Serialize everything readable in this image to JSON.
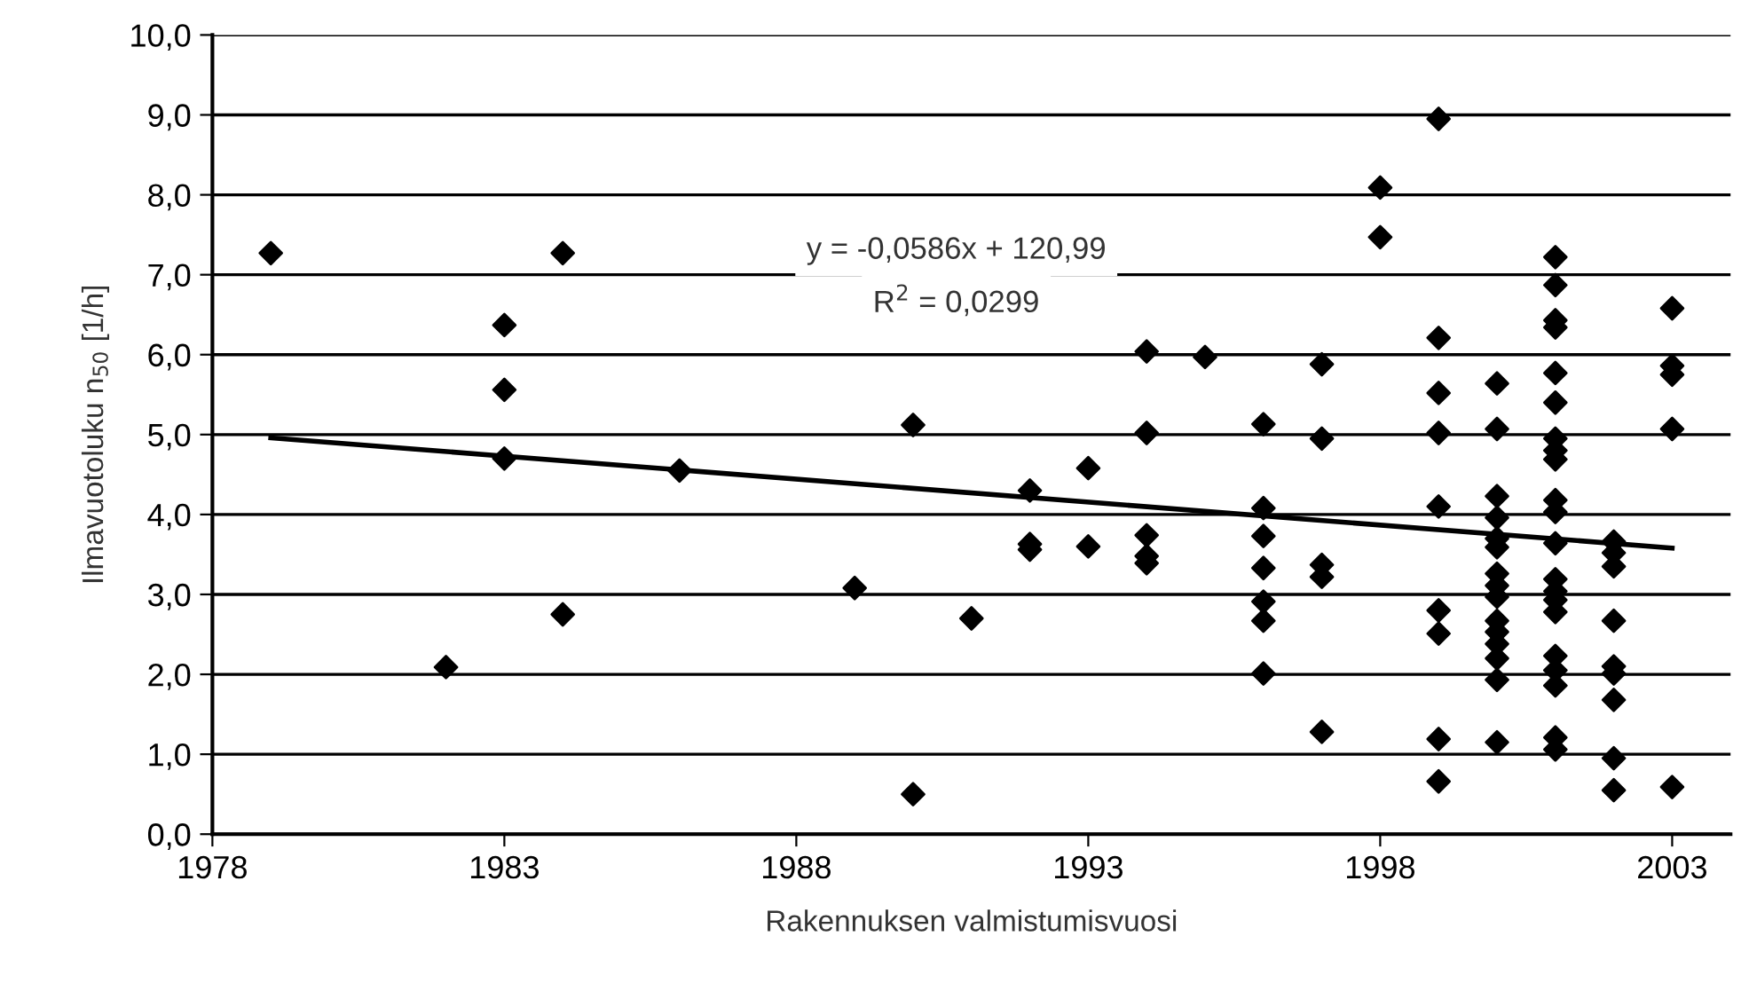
{
  "chart_data": {
    "type": "scatter",
    "xlabel": "Rakennuksen valmistumisvuosi",
    "ylabel": "Ilmavuotoluku n$_{50}$ [1/h]",
    "annotations": [
      "y = -0,0586x + 120,99",
      "R$^{2}$ = 0,0299"
    ],
    "xlim": [
      1978,
      2004
    ],
    "xticks": [
      1978,
      1983,
      1988,
      1993,
      1998,
      2003
    ],
    "ylim": [
      0,
      10
    ],
    "yticks": [
      {
        "value": 0,
        "label": "0,0"
      },
      {
        "value": 1,
        "label": "1,0"
      },
      {
        "value": 2,
        "label": "2,0"
      },
      {
        "value": 3,
        "label": "3,0"
      },
      {
        "value": 4,
        "label": "4,0"
      },
      {
        "value": 5,
        "label": "5,0"
      },
      {
        "value": 6,
        "label": "6,0"
      },
      {
        "value": 7,
        "label": "7,0"
      },
      {
        "value": 8,
        "label": "8,0"
      },
      {
        "value": 9,
        "label": "9,0"
      },
      {
        "value": 10,
        "label": "10,0"
      }
    ],
    "grid": "y",
    "legend": false,
    "marker": "diamond",
    "series": [
      {
        "color": "#000000",
        "x": [
          1979,
          1982,
          1983,
          1983,
          1983,
          1984,
          1984,
          1986,
          1989,
          1990,
          1990,
          1991,
          1992,
          1992,
          1992,
          1993,
          1993,
          1994,
          1994,
          1994,
          1994,
          1994,
          1995,
          1996,
          1996,
          1996,
          1996,
          1996,
          1996,
          1996,
          1997,
          1997,
          1997,
          1997,
          1997,
          1998,
          1998,
          1999,
          1999,
          1999,
          1999,
          1999,
          1999,
          1999,
          1999,
          1999,
          2000,
          2000,
          2000,
          2000,
          2000,
          2000,
          2000,
          2000,
          2000,
          2000,
          2000,
          2000,
          2000,
          2000,
          2000,
          2001,
          2001,
          2001,
          2001,
          2001,
          2001,
          2001,
          2001,
          2001,
          2001,
          2001,
          2001,
          2001,
          2001,
          2001,
          2001,
          2001,
          2001,
          2001,
          2001,
          2001,
          2002,
          2002,
          2002,
          2002,
          2002,
          2002,
          2002,
          2002,
          2002,
          2003,
          2003,
          2003,
          2003,
          2003
        ],
        "values": [
          7.27,
          2.09,
          6.37,
          5.56,
          4.7,
          7.27,
          2.75,
          4.55,
          3.08,
          5.12,
          0.5,
          2.7,
          4.3,
          3.63,
          3.56,
          4.58,
          3.6,
          6.04,
          5.02,
          3.74,
          3.48,
          3.39,
          5.97,
          5.13,
          4.08,
          3.73,
          3.33,
          2.91,
          2.67,
          2.01,
          5.88,
          4.95,
          3.37,
          3.22,
          1.28,
          8.09,
          7.47,
          8.95,
          6.21,
          5.52,
          5.02,
          4.1,
          2.8,
          2.51,
          1.19,
          0.66,
          5.64,
          5.07,
          4.23,
          3.96,
          3.7,
          3.59,
          3.26,
          3.11,
          2.97,
          2.67,
          2.53,
          2.38,
          2.2,
          1.93,
          1.15,
          7.22,
          6.87,
          6.43,
          6.34,
          5.77,
          5.4,
          4.95,
          4.8,
          4.69,
          4.18,
          4.03,
          3.64,
          3.19,
          3.04,
          2.93,
          2.78,
          2.23,
          2.05,
          1.86,
          1.21,
          1.06,
          3.66,
          3.52,
          3.35,
          2.67,
          2.1,
          2.01,
          1.68,
          0.95,
          0.55,
          6.58,
          5.86,
          5.75,
          5.07,
          0.59
        ]
      },
      {
        "type": "line",
        "color": "#000000",
        "marker": "none",
        "line_style": "solid",
        "x": [
          1979,
          2003
        ],
        "values": [
          4.96,
          3.58
        ]
      }
    ]
  }
}
